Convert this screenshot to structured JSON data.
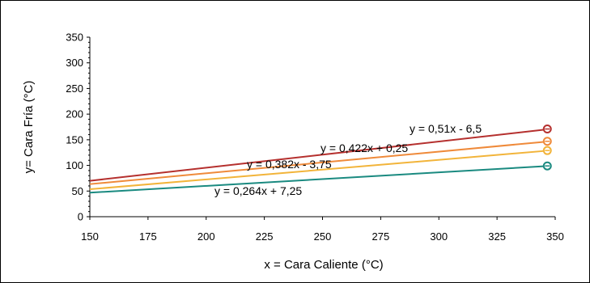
{
  "chart_data": {
    "type": "line",
    "xlabel": "x = Cara Caliente  (°C)",
    "ylabel": "y= Cara Fría  (°C)",
    "xlim": [
      150,
      350
    ],
    "ylim": [
      0,
      350
    ],
    "x_ticks": [
      "150",
      "175",
      "200",
      "225",
      "250",
      "275",
      "300",
      "325",
      "350"
    ],
    "y_ticks": [
      "0",
      "50",
      "100",
      "150",
      "200",
      "250",
      "300",
      "350"
    ],
    "grid": false,
    "legend": "none",
    "series": [
      {
        "color": "#b5302e",
        "equation": "y = 0,51x - 6,5",
        "slope": 0.51,
        "intercept": -6.5,
        "x_start": 150,
        "x_end": 348,
        "marker_y": 171
      },
      {
        "color": "#ef8a3a",
        "equation": "y = 0,422x + 0,25",
        "slope": 0.422,
        "intercept": 0.25,
        "x_start": 150,
        "x_end": 348,
        "marker_y": 147
      },
      {
        "color": "#f2b43a",
        "equation": "y = 0,382x - 3,75",
        "slope": 0.382,
        "intercept": -3.75,
        "x_start": 150,
        "x_end": 348,
        "marker_y": 129
      },
      {
        "color": "#1a8a80",
        "equation": "y = 0,264x + 7,25",
        "slope": 0.264,
        "intercept": 7.25,
        "x_start": 150,
        "x_end": 348,
        "marker_y": 99
      }
    ]
  }
}
